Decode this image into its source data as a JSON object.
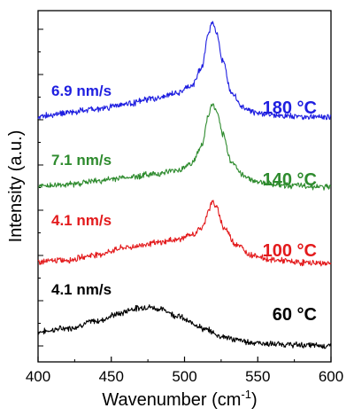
{
  "chart_data": {
    "type": "line",
    "xlabel": "Wavenumber (cm",
    "xlabel_sup": "-1",
    "xlabel_close": ")",
    "ylabel": "Intensity (a.u.)",
    "xlim": [
      400,
      600
    ],
    "x_ticks": [
      400,
      450,
      500,
      550,
      600
    ],
    "y_ticks_visible_labels": false,
    "grid": false,
    "legend": "none",
    "series": [
      {
        "temperature": "60 °C",
        "rate": "4.1 nm/s",
        "color": "#000000",
        "offset": 0,
        "points": [
          [
            400,
            18
          ],
          [
            420,
            22
          ],
          [
            440,
            30
          ],
          [
            455,
            38
          ],
          [
            465,
            44
          ],
          [
            475,
            46
          ],
          [
            485,
            43
          ],
          [
            495,
            36
          ],
          [
            505,
            28
          ],
          [
            515,
            20
          ],
          [
            525,
            13
          ],
          [
            535,
            9
          ],
          [
            545,
            6
          ],
          [
            560,
            4
          ],
          [
            580,
            3
          ],
          [
            600,
            2
          ]
        ]
      },
      {
        "temperature": "100 °C",
        "rate": "4.1 nm/s",
        "color": "#e31a1c",
        "offset": 95,
        "points": [
          [
            400,
            2
          ],
          [
            420,
            4
          ],
          [
            440,
            10
          ],
          [
            460,
            18
          ],
          [
            480,
            23
          ],
          [
            495,
            27
          ],
          [
            505,
            32
          ],
          [
            512,
            40
          ],
          [
            517,
            62
          ],
          [
            519,
            70
          ],
          [
            522,
            62
          ],
          [
            527,
            40
          ],
          [
            535,
            22
          ],
          [
            545,
            10
          ],
          [
            560,
            4
          ],
          [
            580,
            1
          ],
          [
            600,
            0
          ]
        ]
      },
      {
        "temperature": "140 °C",
        "rate": "7.1 nm/s",
        "color": "#2e8b2e",
        "offset": 180,
        "points": [
          [
            400,
            2
          ],
          [
            420,
            4
          ],
          [
            440,
            8
          ],
          [
            460,
            12
          ],
          [
            480,
            16
          ],
          [
            495,
            20
          ],
          [
            505,
            28
          ],
          [
            512,
            48
          ],
          [
            516,
            80
          ],
          [
            519,
            95
          ],
          [
            522,
            86
          ],
          [
            526,
            60
          ],
          [
            532,
            30
          ],
          [
            540,
            14
          ],
          [
            550,
            7
          ],
          [
            570,
            3
          ],
          [
            600,
            1
          ]
        ]
      },
      {
        "temperature": "180 °C",
        "rate": "6.9 nm/s",
        "color": "#1f1fe0",
        "offset": 257,
        "points": [
          [
            400,
            4
          ],
          [
            420,
            8
          ],
          [
            440,
            12
          ],
          [
            460,
            18
          ],
          [
            480,
            24
          ],
          [
            495,
            30
          ],
          [
            505,
            38
          ],
          [
            512,
            60
          ],
          [
            516,
            95
          ],
          [
            519,
            110
          ],
          [
            522,
            98
          ],
          [
            526,
            66
          ],
          [
            532,
            32
          ],
          [
            540,
            14
          ],
          [
            550,
            7
          ],
          [
            570,
            4
          ],
          [
            600,
            3
          ]
        ]
      }
    ]
  },
  "annotations": {
    "temp_180": "180 °C",
    "temp_140": "140 °C",
    "temp_100": "100 °C",
    "temp_60": "60 °C",
    "rate_180": "6.9 nm/s",
    "rate_140": "7.1 nm/s",
    "rate_100": "4.1 nm/s",
    "rate_60": "4.1 nm/s"
  }
}
